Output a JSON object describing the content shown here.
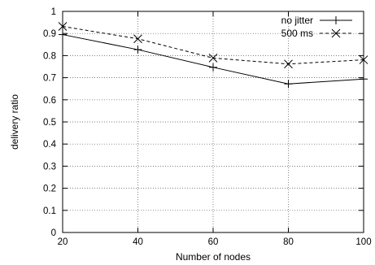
{
  "chart_data": {
    "type": "line",
    "xlabel": "Number of nodes",
    "ylabel": "delivery ratio",
    "x": [
      20,
      40,
      60,
      80,
      100
    ],
    "xlim": [
      20,
      100
    ],
    "ylim": [
      0,
      1
    ],
    "xticks": [
      "20",
      "40",
      "60",
      "80",
      "100"
    ],
    "yticks": [
      "0",
      "0.1",
      "0.2",
      "0.3",
      "0.4",
      "0.5",
      "0.6",
      "0.7",
      "0.8",
      "0.9",
      "1"
    ],
    "grid": true,
    "legend_position": "top-right",
    "series": [
      {
        "name": "no jitter",
        "values": [
          0.895,
          0.827,
          0.747,
          0.672,
          0.694
        ],
        "line_style": "solid",
        "marker": "plus",
        "color": "#000000"
      },
      {
        "name": "500 ms",
        "values": [
          0.932,
          0.876,
          0.789,
          0.762,
          0.781
        ],
        "line_style": "dashed",
        "marker": "cross",
        "color": "#000000"
      }
    ]
  }
}
